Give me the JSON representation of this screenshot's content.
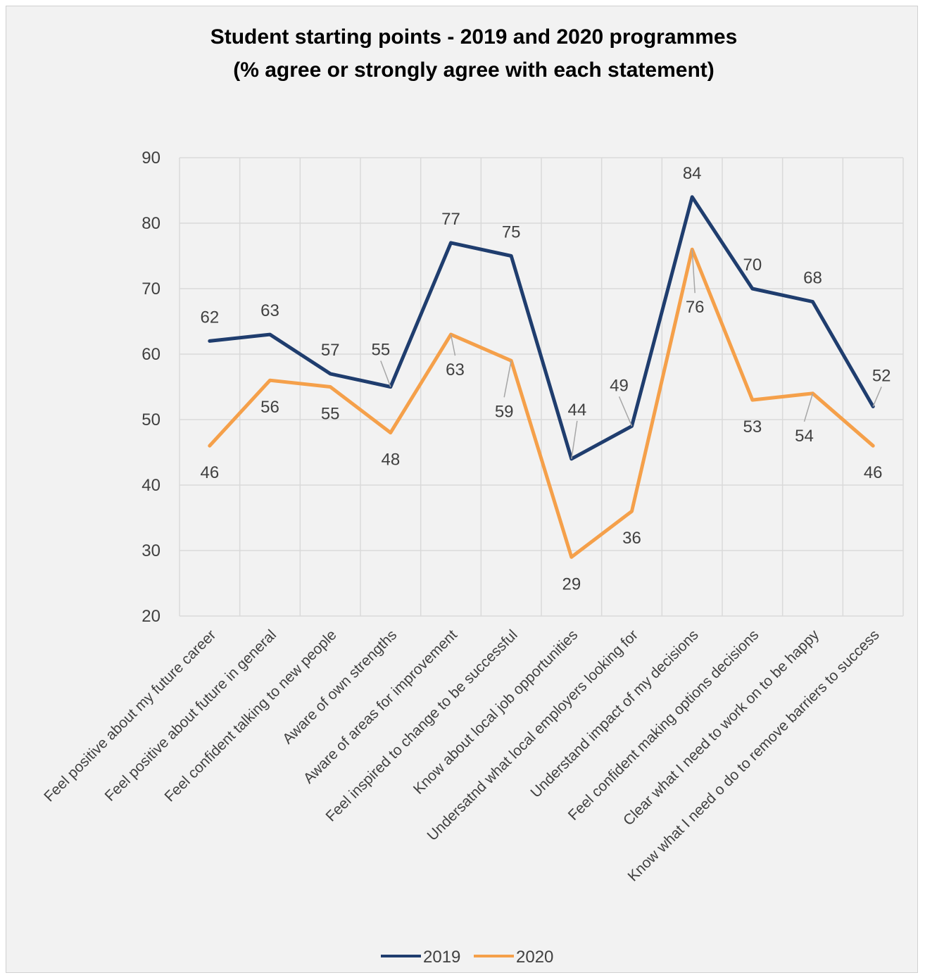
{
  "chart_data": {
    "type": "line",
    "title": "Student starting points - 2019 and 2020 programmes",
    "subtitle": "(% agree or strongly agree with each statement)",
    "xlabel": "",
    "ylabel": "",
    "ylim": [
      20,
      90
    ],
    "yticks": [
      20,
      30,
      40,
      50,
      60,
      70,
      80,
      90
    ],
    "grid": true,
    "legend_position": "bottom",
    "categories": [
      "Feel positive about my future career",
      "Feel positive about future in general",
      "Feel confident talking to new people",
      "Aware of own strengths",
      "Aware of areas for improvement",
      "Feel inspired to change to be successful",
      "Know about local job opportunities",
      "Undersatnd what local employers looking for",
      "Understand impact of my decisions",
      "Feel confident making options decisions",
      "Clear what I need to work on to be happy",
      "Know what I need o do to remove barriers to success"
    ],
    "series": [
      {
        "name": "2019",
        "color": "#1f3d6e",
        "values": [
          62,
          63,
          57,
          55,
          77,
          75,
          44,
          49,
          84,
          70,
          68,
          52
        ]
      },
      {
        "name": "2020",
        "color": "#f5a04a",
        "values": [
          46,
          56,
          55,
          48,
          63,
          59,
          29,
          36,
          76,
          53,
          54,
          46
        ]
      }
    ]
  }
}
